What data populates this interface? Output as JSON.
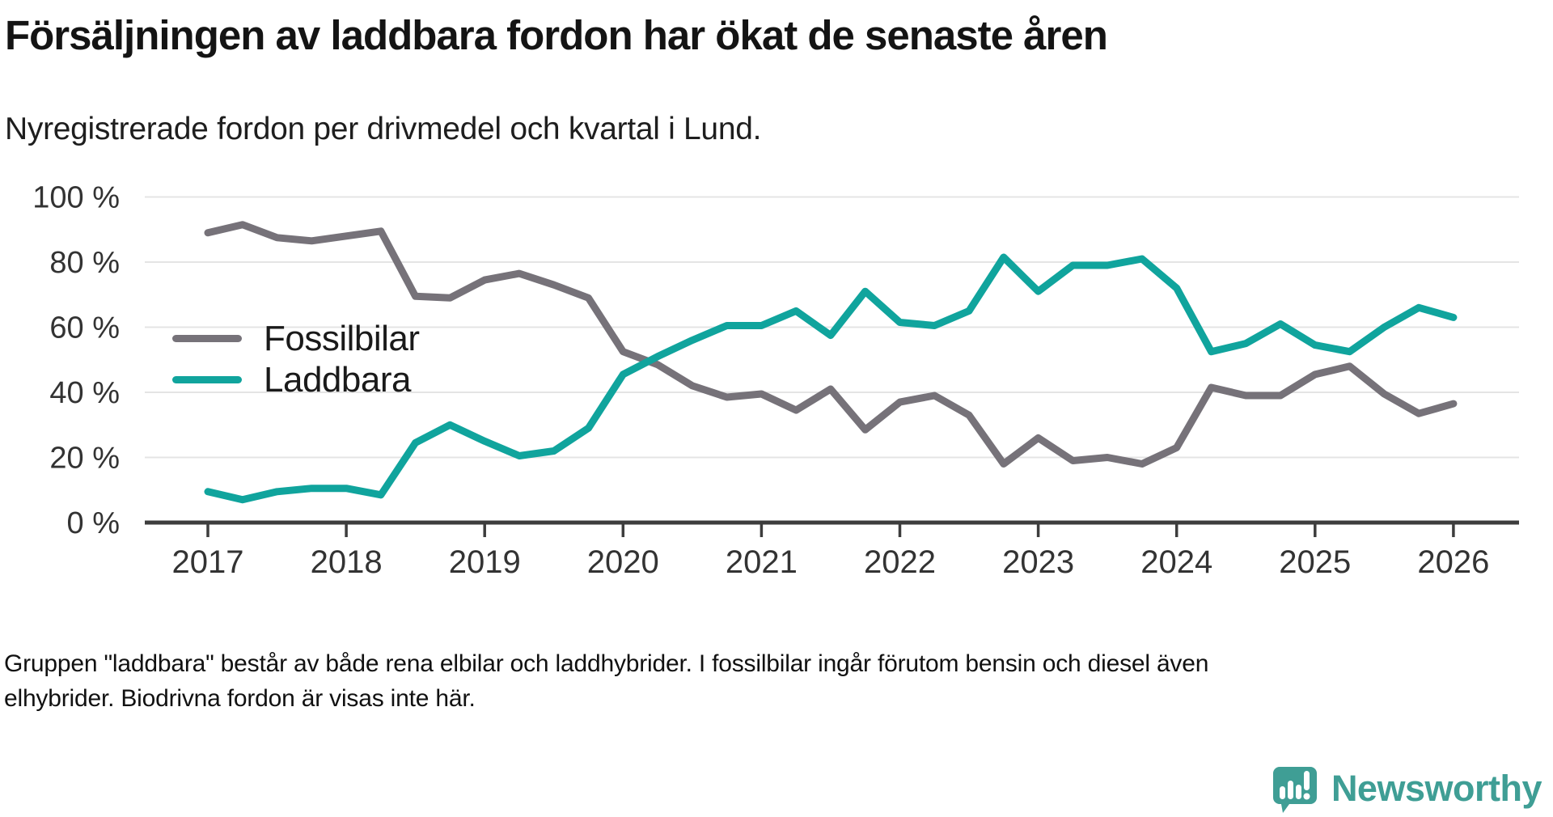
{
  "header": {
    "title": "Försäljningen av laddbara fordon har ökat de senaste åren",
    "subtitle": "Nyregistrerade fordon per drivmedel och kvartal i Lund."
  },
  "chart_data": {
    "type": "line",
    "title": "Försäljningen av laddbara fordon har ökat de senaste åren",
    "subtitle": "Nyregistrerade fordon per drivmedel och kvartal i Lund.",
    "x_unit": "quarter",
    "x_start": "2017 Q1",
    "x_end": "2026 Q1",
    "points_per_year": 4,
    "x_tick_labels": [
      "2017",
      "2018",
      "2019",
      "2020",
      "2021",
      "2022",
      "2023",
      "2024",
      "2025",
      "2026"
    ],
    "y_ticks": [
      {
        "value": 0,
        "label": "0 %"
      },
      {
        "value": 20,
        "label": "20 %"
      },
      {
        "value": 40,
        "label": "40 %"
      },
      {
        "value": 60,
        "label": "60 %"
      },
      {
        "value": 80,
        "label": "80 %"
      },
      {
        "value": 100,
        "label": "100 %"
      }
    ],
    "ylim": [
      0,
      100
    ],
    "grid": true,
    "legend_position": "inside-left",
    "series": [
      {
        "name": "Fossilbilar",
        "color": "#767279",
        "values": [
          89,
          91.5,
          87.5,
          86.5,
          88,
          89.5,
          69.5,
          69,
          74.5,
          76.5,
          73,
          69,
          52.5,
          48.5,
          42,
          38.5,
          39.5,
          34.5,
          41,
          28.5,
          37,
          39,
          33,
          18,
          26,
          19,
          20,
          18,
          23,
          41.5,
          39,
          39,
          45.5,
          48,
          39.5,
          33.5,
          36.5
        ]
      },
      {
        "name": "Laddbara",
        "color": "#10a49d",
        "values": [
          9.5,
          7,
          9.5,
          10.5,
          10.5,
          8.5,
          24.5,
          30,
          25,
          20.5,
          22,
          29,
          45.5,
          51,
          56,
          60.5,
          60.5,
          65,
          57.5,
          71,
          61.5,
          60.5,
          65,
          81.5,
          71,
          79,
          79,
          81,
          72,
          52.5,
          55,
          61,
          54.5,
          52.5,
          60,
          66,
          63
        ]
      }
    ]
  },
  "footer": {
    "lines": [
      "Gruppen \"laddbara\" består av både rena elbilar och laddhybrider. I fossilbilar ingår förutom bensin och diesel även",
      "elhybrider. Biodrivna fordon är visas inte här."
    ]
  },
  "logo": {
    "text": "Newsworthy",
    "color": "#3f9e95",
    "icon": "newsworthy-speech-bubble-chart-icon"
  }
}
